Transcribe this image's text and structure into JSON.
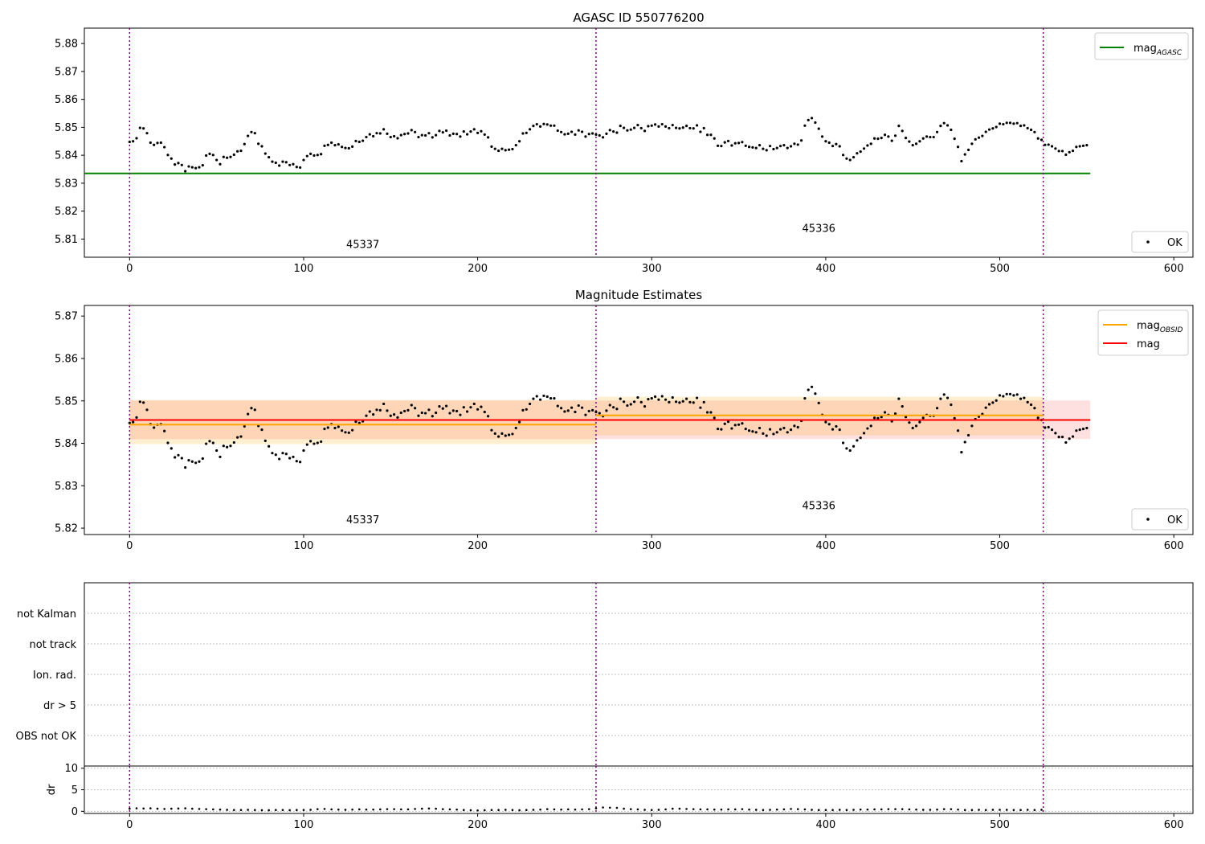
{
  "figure": {
    "title_top": "AGASC ID 550776200",
    "title_middle": "Magnitude Estimates"
  },
  "chart_data": [
    {
      "type": "scatter",
      "title": "AGASC ID 550776200",
      "xlabel": "",
      "ylabel": "",
      "xlim": [
        -26,
        611
      ],
      "ylim": [
        5.8035,
        5.8855
      ],
      "xticks": [
        "0",
        "100",
        "200",
        "300",
        "400",
        "500",
        "600"
      ],
      "yticks": [
        "5.81",
        "5.82",
        "5.83",
        "5.84",
        "5.85",
        "5.86",
        "5.87",
        "5.88"
      ],
      "grid": false,
      "legends": [
        {
          "placement": "top-right",
          "entries": [
            {
              "label": "mag",
              "subscript": "AGASC",
              "color": "#008000",
              "kind": "line"
            }
          ]
        },
        {
          "placement": "bottom-right",
          "entries": [
            {
              "label": "OK",
              "color": "#000000",
              "kind": "marker"
            }
          ]
        }
      ],
      "obsid_boundaries": [
        0,
        268,
        525
      ],
      "obsid_labels": [
        {
          "text": "45337",
          "x": 134,
          "y": 5.8068
        },
        {
          "text": "45336",
          "x": 396,
          "y": 5.8126
        }
      ],
      "series": [
        {
          "name": "mag",
          "type": "hline",
          "value": 5.8335,
          "x_range": [
            -26,
            552
          ],
          "color": "#008000"
        },
        {
          "name": "OK",
          "type": "points",
          "color": "#000000",
          "points": "samples"
        }
      ]
    },
    {
      "type": "scatter",
      "title": "Magnitude Estimates",
      "xlabel": "",
      "ylabel": "",
      "xlim": [
        -26,
        611
      ],
      "ylim": [
        5.8185,
        5.8725
      ],
      "xticks": [
        "0",
        "100",
        "200",
        "300",
        "400",
        "500",
        "600"
      ],
      "yticks": [
        "5.82",
        "5.83",
        "5.84",
        "5.85",
        "5.86",
        "5.87"
      ],
      "grid": false,
      "legends": [
        {
          "placement": "top-right",
          "entries": [
            {
              "label": "mag",
              "subscript": "OBSID",
              "color": "#ffa500",
              "kind": "line"
            },
            {
              "label": "mag",
              "subscript": "",
              "color": "#ff0000",
              "kind": "line"
            }
          ]
        },
        {
          "placement": "bottom-right",
          "entries": [
            {
              "label": "OK",
              "color": "#000000",
              "kind": "marker"
            }
          ]
        }
      ],
      "obsid_boundaries": [
        0,
        268,
        525
      ],
      "obsid_labels": [
        {
          "text": "45337",
          "x": 134,
          "y": 5.8212
        },
        {
          "text": "45336",
          "x": 396,
          "y": 5.8245
        }
      ],
      "series": [
        {
          "name": "mag",
          "type": "hline_band",
          "value": 5.8455,
          "band": [
            5.841,
            5.8501
          ],
          "x_range": [
            0,
            552
          ],
          "color": "#ff0000"
        },
        {
          "name": "mag OBSID 45337",
          "type": "hline_band",
          "value": 5.8444,
          "band": [
            5.8398,
            5.8502
          ],
          "x_range": [
            0,
            268
          ],
          "color": "#ffa500"
        },
        {
          "name": "mag OBSID 45336",
          "type": "hline_band",
          "value": 5.8466,
          "band": [
            5.8419,
            5.851
          ],
          "x_range": [
            268,
            525
          ],
          "color": "#ffa500"
        },
        {
          "name": "OK",
          "type": "points",
          "color": "#000000",
          "points": "samples"
        }
      ]
    },
    {
      "type": "scatter",
      "title": "",
      "xlabel": "",
      "ylabel": "",
      "xlim": [
        -26,
        611
      ],
      "categories": [
        "OBS not OK",
        "dr > 5",
        "Ion. rad.",
        "not track",
        "not Kalman"
      ],
      "grid": true,
      "obsid_boundaries": [
        0,
        268,
        525
      ],
      "series": []
    },
    {
      "type": "scatter",
      "title": "",
      "xlabel": "",
      "ylabel": "dr",
      "xlim": [
        -26,
        611
      ],
      "ylim": [
        -0.5,
        10.5
      ],
      "xticks": [
        "0",
        "100",
        "200",
        "300",
        "400",
        "500",
        "600"
      ],
      "yticks": [
        "0",
        "5",
        "10"
      ],
      "grid": true,
      "obsid_boundaries": [
        0,
        268,
        525
      ],
      "series": [
        {
          "name": "dr",
          "type": "points",
          "color": "#000000",
          "points": "dr_samples"
        }
      ]
    }
  ],
  "samples": [
    [
      0,
      5.8448
    ],
    [
      2,
      5.845
    ],
    [
      4,
      5.8461
    ],
    [
      6,
      5.8498
    ],
    [
      8,
      5.8496
    ],
    [
      10,
      5.8479
    ],
    [
      12,
      5.8445
    ],
    [
      14,
      5.8437
    ],
    [
      16,
      5.8444
    ],
    [
      18,
      5.8445
    ],
    [
      20,
      5.8429
    ],
    [
      22,
      5.8401
    ],
    [
      24,
      5.8388
    ],
    [
      26,
      5.8367
    ],
    [
      28,
      5.8372
    ],
    [
      30,
      5.8365
    ],
    [
      32,
      5.8343
    ],
    [
      34,
      5.836
    ],
    [
      36,
      5.8357
    ],
    [
      38,
      5.8354
    ],
    [
      40,
      5.8357
    ],
    [
      42,
      5.8364
    ],
    [
      44,
      5.8399
    ],
    [
      46,
      5.8405
    ],
    [
      48,
      5.8401
    ],
    [
      50,
      5.8383
    ],
    [
      52,
      5.8368
    ],
    [
      54,
      5.8394
    ],
    [
      56,
      5.8391
    ],
    [
      58,
      5.8394
    ],
    [
      60,
      5.8402
    ],
    [
      62,
      5.8414
    ],
    [
      64,
      5.8416
    ],
    [
      66,
      5.844
    ],
    [
      68,
      5.8469
    ],
    [
      70,
      5.8483
    ],
    [
      72,
      5.8479
    ],
    [
      74,
      5.8441
    ],
    [
      76,
      5.8432
    ],
    [
      78,
      5.8406
    ],
    [
      80,
      5.8393
    ],
    [
      82,
      5.8377
    ],
    [
      84,
      5.8373
    ],
    [
      86,
      5.8363
    ],
    [
      88,
      5.8377
    ],
    [
      90,
      5.8375
    ],
    [
      92,
      5.8365
    ],
    [
      94,
      5.8368
    ],
    [
      96,
      5.8358
    ],
    [
      98,
      5.8356
    ],
    [
      100,
      5.8383
    ],
    [
      102,
      5.8397
    ],
    [
      104,
      5.8405
    ],
    [
      106,
      5.8399
    ],
    [
      108,
      5.8401
    ],
    [
      110,
      5.8404
    ],
    [
      112,
      5.8434
    ],
    [
      114,
      5.8437
    ],
    [
      116,
      5.8445
    ],
    [
      118,
      5.8436
    ],
    [
      120,
      5.8439
    ],
    [
      122,
      5.843
    ],
    [
      124,
      5.8426
    ],
    [
      126,
      5.8425
    ],
    [
      128,
      5.8431
    ],
    [
      130,
      5.8451
    ],
    [
      132,
      5.8448
    ],
    [
      134,
      5.8452
    ],
    [
      136,
      5.8465
    ],
    [
      138,
      5.8475
    ],
    [
      140,
      5.8468
    ],
    [
      142,
      5.8479
    ],
    [
      144,
      5.8478
    ],
    [
      146,
      5.8493
    ],
    [
      148,
      5.8477
    ],
    [
      150,
      5.8465
    ],
    [
      152,
      5.8468
    ],
    [
      154,
      5.8461
    ],
    [
      156,
      5.8472
    ],
    [
      158,
      5.8476
    ],
    [
      160,
      5.8478
    ],
    [
      162,
      5.849
    ],
    [
      164,
      5.8483
    ],
    [
      166,
      5.8465
    ],
    [
      168,
      5.8472
    ],
    [
      170,
      5.8471
    ],
    [
      172,
      5.8479
    ],
    [
      174,
      5.8464
    ],
    [
      176,
      5.8472
    ],
    [
      178,
      5.8487
    ],
    [
      180,
      5.8482
    ],
    [
      182,
      5.8488
    ],
    [
      184,
      5.8471
    ],
    [
      186,
      5.8477
    ],
    [
      188,
      5.8476
    ],
    [
      190,
      5.8467
    ],
    [
      192,
      5.8485
    ],
    [
      194,
      5.8475
    ],
    [
      196,
      5.8485
    ],
    [
      198,
      5.8493
    ],
    [
      200,
      5.848
    ],
    [
      202,
      5.8486
    ],
    [
      204,
      5.8474
    ],
    [
      206,
      5.8464
    ],
    [
      208,
      5.8431
    ],
    [
      210,
      5.8423
    ],
    [
      212,
      5.8416
    ],
    [
      214,
      5.8423
    ],
    [
      216,
      5.8418
    ],
    [
      218,
      5.842
    ],
    [
      220,
      5.8422
    ],
    [
      222,
      5.8436
    ],
    [
      224,
      5.845
    ],
    [
      226,
      5.8478
    ],
    [
      228,
      5.848
    ],
    [
      230,
      5.8493
    ],
    [
      232,
      5.8505
    ],
    [
      234,
      5.8511
    ],
    [
      236,
      5.8503
    ],
    [
      238,
      5.8512
    ],
    [
      240,
      5.851
    ],
    [
      242,
      5.8506
    ],
    [
      244,
      5.8506
    ],
    [
      246,
      5.8488
    ],
    [
      248,
      5.8483
    ],
    [
      250,
      5.8475
    ],
    [
      252,
      5.8477
    ],
    [
      254,
      5.8484
    ],
    [
      256,
      5.8474
    ],
    [
      258,
      5.8489
    ],
    [
      260,
      5.8484
    ],
    [
      262,
      5.8467
    ],
    [
      264,
      5.8476
    ],
    [
      266,
      5.8478
    ],
    [
      268,
      5.8474
    ],
    [
      270,
      5.8471
    ],
    [
      272,
      5.8464
    ],
    [
      274,
      5.8477
    ],
    [
      276,
      5.849
    ],
    [
      278,
      5.8485
    ],
    [
      280,
      5.8481
    ],
    [
      282,
      5.8505
    ],
    [
      284,
      5.8498
    ],
    [
      286,
      5.8489
    ],
    [
      288,
      5.8492
    ],
    [
      290,
      5.8498
    ],
    [
      292,
      5.8508
    ],
    [
      294,
      5.8497
    ],
    [
      296,
      5.8487
    ],
    [
      298,
      5.8504
    ],
    [
      300,
      5.8506
    ],
    [
      302,
      5.851
    ],
    [
      304,
      5.8503
    ],
    [
      306,
      5.8511
    ],
    [
      308,
      5.8503
    ],
    [
      310,
      5.8497
    ],
    [
      312,
      5.8508
    ],
    [
      314,
      5.8498
    ],
    [
      316,
      5.8496
    ],
    [
      318,
      5.8499
    ],
    [
      320,
      5.8505
    ],
    [
      322,
      5.8497
    ],
    [
      324,
      5.8496
    ],
    [
      326,
      5.8507
    ],
    [
      328,
      5.8484
    ],
    [
      330,
      5.8497
    ],
    [
      332,
      5.8473
    ],
    [
      334,
      5.8473
    ],
    [
      336,
      5.846
    ],
    [
      338,
      5.8434
    ],
    [
      340,
      5.8433
    ],
    [
      342,
      5.8446
    ],
    [
      344,
      5.8451
    ],
    [
      346,
      5.8435
    ],
    [
      348,
      5.8443
    ],
    [
      350,
      5.8444
    ],
    [
      352,
      5.8447
    ],
    [
      354,
      5.8434
    ],
    [
      356,
      5.843
    ],
    [
      358,
      5.8428
    ],
    [
      360,
      5.8426
    ],
    [
      362,
      5.8436
    ],
    [
      364,
      5.8423
    ],
    [
      366,
      5.8418
    ],
    [
      368,
      5.8433
    ],
    [
      370,
      5.8422
    ],
    [
      372,
      5.8426
    ],
    [
      374,
      5.8433
    ],
    [
      376,
      5.8436
    ],
    [
      378,
      5.8426
    ],
    [
      380,
      5.8432
    ],
    [
      382,
      5.8441
    ],
    [
      384,
      5.8438
    ],
    [
      386,
      5.8453
    ],
    [
      388,
      5.8506
    ],
    [
      390,
      5.8526
    ],
    [
      392,
      5.8533
    ],
    [
      394,
      5.8517
    ],
    [
      396,
      5.8495
    ],
    [
      398,
      5.8467
    ],
    [
      400,
      5.845
    ],
    [
      402,
      5.8445
    ],
    [
      404,
      5.8433
    ],
    [
      406,
      5.844
    ],
    [
      408,
      5.8432
    ],
    [
      410,
      5.8401
    ],
    [
      412,
      5.8388
    ],
    [
      414,
      5.8383
    ],
    [
      416,
      5.8393
    ],
    [
      418,
      5.8407
    ],
    [
      420,
      5.8413
    ],
    [
      422,
      5.8424
    ],
    [
      424,
      5.8435
    ],
    [
      426,
      5.8441
    ],
    [
      428,
      5.846
    ],
    [
      430,
      5.8459
    ],
    [
      432,
      5.8462
    ],
    [
      434,
      5.8473
    ],
    [
      436,
      5.8467
    ],
    [
      438,
      5.8452
    ],
    [
      440,
      5.847
    ],
    [
      442,
      5.8505
    ],
    [
      444,
      5.8487
    ],
    [
      446,
      5.8462
    ],
    [
      448,
      5.8449
    ],
    [
      450,
      5.8436
    ],
    [
      452,
      5.8441
    ],
    [
      454,
      5.845
    ],
    [
      456,
      5.846
    ],
    [
      458,
      5.8467
    ],
    [
      460,
      5.8465
    ],
    [
      462,
      5.8465
    ],
    [
      464,
      5.8483
    ],
    [
      466,
      5.8505
    ],
    [
      468,
      5.8515
    ],
    [
      470,
      5.8507
    ],
    [
      472,
      5.8491
    ],
    [
      474,
      5.8459
    ],
    [
      476,
      5.843
    ],
    [
      478,
      5.8379
    ],
    [
      480,
      5.8403
    ],
    [
      482,
      5.8419
    ],
    [
      484,
      5.8441
    ],
    [
      486,
      5.8457
    ],
    [
      488,
      5.8463
    ],
    [
      490,
      5.8469
    ],
    [
      492,
      5.8484
    ],
    [
      494,
      5.8492
    ],
    [
      496,
      5.8496
    ],
    [
      498,
      5.8501
    ],
    [
      500,
      5.8513
    ],
    [
      502,
      5.8511
    ],
    [
      504,
      5.8516
    ],
    [
      506,
      5.8516
    ],
    [
      508,
      5.8513
    ],
    [
      510,
      5.8515
    ],
    [
      512,
      5.8505
    ],
    [
      514,
      5.8507
    ],
    [
      516,
      5.8497
    ],
    [
      518,
      5.8491
    ],
    [
      520,
      5.8483
    ],
    [
      522,
      5.846
    ],
    [
      524,
      5.8455
    ],
    [
      526,
      5.8437
    ],
    [
      528,
      5.8438
    ],
    [
      530,
      5.8432
    ],
    [
      532,
      5.8424
    ],
    [
      534,
      5.8415
    ],
    [
      536,
      5.8415
    ],
    [
      538,
      5.8402
    ],
    [
      540,
      5.8411
    ],
    [
      542,
      5.8416
    ],
    [
      544,
      5.843
    ],
    [
      546,
      5.8432
    ],
    [
      548,
      5.8434
    ],
    [
      550,
      5.8436
    ]
  ],
  "dr_samples_note": "",
  "dr_samples": [
    [
      0,
      0.6
    ],
    [
      4,
      0.7
    ],
    [
      8,
      0.65
    ],
    [
      12,
      0.7
    ],
    [
      16,
      0.6
    ],
    [
      20,
      0.55
    ],
    [
      24,
      0.6
    ],
    [
      28,
      0.65
    ],
    [
      32,
      0.7
    ],
    [
      36,
      0.6
    ],
    [
      40,
      0.55
    ],
    [
      44,
      0.5
    ],
    [
      48,
      0.45
    ],
    [
      52,
      0.4
    ],
    [
      56,
      0.35
    ],
    [
      60,
      0.3
    ],
    [
      64,
      0.3
    ],
    [
      68,
      0.35
    ],
    [
      72,
      0.3
    ],
    [
      76,
      0.25
    ],
    [
      80,
      0.25
    ],
    [
      84,
      0.3
    ],
    [
      88,
      0.3
    ],
    [
      92,
      0.25
    ],
    [
      96,
      0.3
    ],
    [
      100,
      0.3
    ],
    [
      104,
      0.35
    ],
    [
      108,
      0.5
    ],
    [
      112,
      0.55
    ],
    [
      116,
      0.45
    ],
    [
      120,
      0.4
    ],
    [
      124,
      0.35
    ],
    [
      128,
      0.4
    ],
    [
      132,
      0.45
    ],
    [
      136,
      0.4
    ],
    [
      140,
      0.4
    ],
    [
      144,
      0.45
    ],
    [
      148,
      0.5
    ],
    [
      152,
      0.5
    ],
    [
      156,
      0.45
    ],
    [
      160,
      0.45
    ],
    [
      164,
      0.55
    ],
    [
      168,
      0.6
    ],
    [
      172,
      0.65
    ],
    [
      176,
      0.6
    ],
    [
      180,
      0.5
    ],
    [
      184,
      0.45
    ],
    [
      188,
      0.4
    ],
    [
      192,
      0.3
    ],
    [
      196,
      0.25
    ],
    [
      200,
      0.2
    ],
    [
      204,
      0.25
    ],
    [
      208,
      0.3
    ],
    [
      212,
      0.3
    ],
    [
      216,
      0.35
    ],
    [
      220,
      0.3
    ],
    [
      224,
      0.25
    ],
    [
      228,
      0.3
    ],
    [
      232,
      0.35
    ],
    [
      236,
      0.4
    ],
    [
      240,
      0.5
    ],
    [
      244,
      0.45
    ],
    [
      248,
      0.4
    ],
    [
      252,
      0.45
    ],
    [
      256,
      0.4
    ],
    [
      260,
      0.45
    ],
    [
      264,
      0.5
    ],
    [
      268,
      0.7
    ],
    [
      272,
      0.9
    ],
    [
      276,
      0.85
    ],
    [
      280,
      0.8
    ],
    [
      284,
      0.6
    ],
    [
      288,
      0.5
    ],
    [
      292,
      0.45
    ],
    [
      296,
      0.35
    ],
    [
      300,
      0.3
    ],
    [
      304,
      0.35
    ],
    [
      308,
      0.45
    ],
    [
      312,
      0.6
    ],
    [
      316,
      0.6
    ],
    [
      320,
      0.55
    ],
    [
      324,
      0.5
    ],
    [
      328,
      0.45
    ],
    [
      332,
      0.45
    ],
    [
      336,
      0.4
    ],
    [
      340,
      0.4
    ],
    [
      344,
      0.45
    ],
    [
      348,
      0.45
    ],
    [
      352,
      0.5
    ],
    [
      356,
      0.4
    ],
    [
      360,
      0.35
    ],
    [
      364,
      0.3
    ],
    [
      368,
      0.35
    ],
    [
      372,
      0.4
    ],
    [
      376,
      0.45
    ],
    [
      380,
      0.55
    ],
    [
      384,
      0.5
    ],
    [
      388,
      0.45
    ],
    [
      392,
      0.35
    ],
    [
      396,
      0.3
    ],
    [
      400,
      0.3
    ],
    [
      404,
      0.3
    ],
    [
      408,
      0.35
    ],
    [
      412,
      0.3
    ],
    [
      416,
      0.35
    ],
    [
      420,
      0.4
    ],
    [
      424,
      0.4
    ],
    [
      428,
      0.45
    ],
    [
      432,
      0.45
    ],
    [
      436,
      0.5
    ],
    [
      440,
      0.5
    ],
    [
      444,
      0.5
    ],
    [
      448,
      0.45
    ],
    [
      452,
      0.4
    ],
    [
      456,
      0.35
    ],
    [
      460,
      0.35
    ],
    [
      464,
      0.4
    ],
    [
      468,
      0.5
    ],
    [
      472,
      0.5
    ],
    [
      476,
      0.4
    ],
    [
      480,
      0.3
    ],
    [
      484,
      0.3
    ],
    [
      488,
      0.35
    ],
    [
      492,
      0.3
    ],
    [
      496,
      0.35
    ],
    [
      500,
      0.35
    ],
    [
      504,
      0.35
    ],
    [
      508,
      0.3
    ],
    [
      512,
      0.3
    ],
    [
      516,
      0.35
    ],
    [
      520,
      0.3
    ],
    [
      524,
      0.35
    ]
  ]
}
